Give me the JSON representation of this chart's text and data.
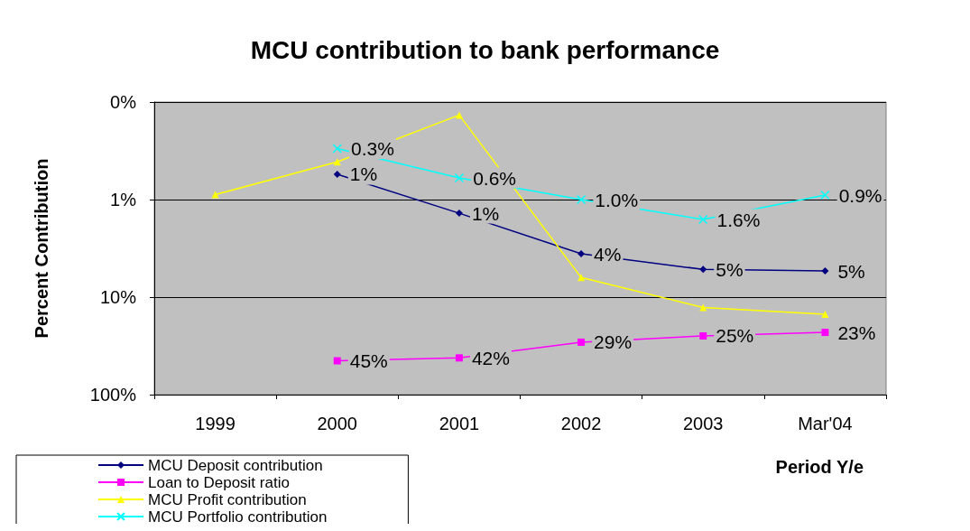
{
  "chart_data": {
    "type": "line",
    "title": "MCU contribution to bank performance",
    "xlabel": "Period Y/e",
    "ylabel": "Percent Contribution",
    "categories": [
      "1999",
      "2000",
      "2001",
      "2002",
      "2003",
      "Mar'04"
    ],
    "series": [
      {
        "name": "MCU Deposit contribution",
        "color": "#000080",
        "marker": "diamond",
        "values": [
          null,
          0.55,
          1.38,
          3.6,
          5.2,
          5.4
        ],
        "value_labels": [
          null,
          "1%",
          "1%",
          "4%",
          "5%",
          "5%"
        ]
      },
      {
        "name": "Loan to Deposit ratio",
        "color": "#ff00ff",
        "marker": "square",
        "values": [
          null,
          45,
          42,
          29,
          25,
          23
        ],
        "value_labels": [
          null,
          "45%",
          "42%",
          "29%",
          "25%",
          "23%"
        ]
      },
      {
        "name": "MCU Profit contribution",
        "color": "#ffff00",
        "marker": "triangle",
        "values": [
          0.89,
          0.41,
          0.136,
          6.3,
          12.8,
          15
        ]
      },
      {
        "name": "MCU Portfolio contribution",
        "color": "#00ffff",
        "marker": "cross",
        "values": [
          null,
          0.3,
          0.6,
          1.0,
          1.6,
          0.9
        ],
        "value_labels": [
          null,
          "0.3%",
          "0.6%",
          "1.0%",
          "1.6%",
          "0.9%"
        ]
      }
    ],
    "log": "y",
    "ylim": [
      100,
      0.1
    ],
    "yticks": [
      {
        "value": 0.1,
        "label": "0%"
      },
      {
        "value": 1,
        "label": "1%"
      },
      {
        "value": 10,
        "label": "10%"
      },
      {
        "value": 100,
        "label": "100%"
      }
    ],
    "grid": "y",
    "legend": "bottom left"
  }
}
